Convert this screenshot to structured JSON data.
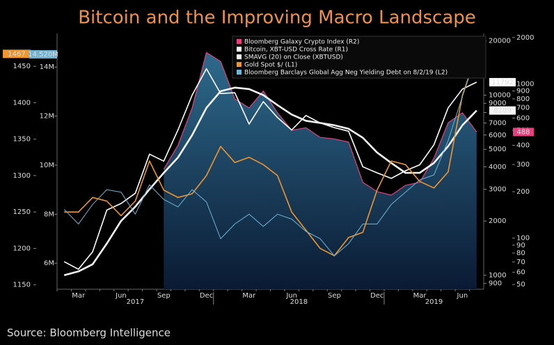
{
  "chart_data": {
    "type": "line",
    "title": "Bitcoin and the Improving Macro Landscape",
    "source": "Source: Bloomberg Intelligence",
    "categories": [
      null,
      "Mar",
      null,
      null,
      "Jun",
      null,
      null,
      "Sep",
      null,
      null,
      "Dec",
      null,
      null,
      "Mar",
      null,
      null,
      "Jun",
      null,
      null,
      "Sep",
      null,
      null,
      "Dec",
      null,
      null,
      "Mar",
      null,
      null,
      "Jun",
      null
    ],
    "x_groups": [
      "2017",
      "2018",
      "2019"
    ],
    "ylim": [
      1144,
      1495
    ],
    "yticks": [
      1150,
      1200,
      1250,
      1300,
      1350,
      1400,
      1450
    ],
    "y2lim": [
      4940000,
      15370000
    ],
    "y2ticks": [
      {
        "value": 6000000,
        "label": "6M"
      },
      {
        "value": 8000000,
        "label": "8M"
      },
      {
        "value": 10000000,
        "label": "10M"
      },
      {
        "value": 12000000,
        "label": "12M"
      },
      {
        "value": 14000000,
        "label": "14M"
      }
    ],
    "y3lim": [
      836,
      21980
    ],
    "y3log": true,
    "y3ticks": [
      900,
      1000,
      2000,
      3000,
      4000,
      5000,
      6000,
      7000,
      8000,
      9000,
      10000,
      20000
    ],
    "y4lim": [
      46.6,
      2125
    ],
    "y4log": true,
    "y4ticks": [
      50,
      60,
      70,
      80,
      90,
      100,
      200,
      300,
      400,
      500,
      600,
      700,
      800,
      900,
      1000,
      2000
    ],
    "series": [
      {
        "name": "Bloomberg Galaxy Crypto Index  (R2)",
        "color": "#e8407e",
        "style": "area",
        "axis": "y4",
        "values": [
          null,
          null,
          null,
          null,
          null,
          null,
          null,
          280,
          400,
          700,
          1600,
          1400,
          800,
          700,
          900,
          650,
          500,
          520,
          450,
          440,
          420,
          230,
          200,
          190,
          220,
          230,
          330,
          560,
          650,
          488
        ],
        "value_labels": [
          null,
          null,
          null,
          null,
          null,
          null,
          null,
          null,
          null,
          null,
          null,
          null,
          null,
          null,
          null,
          null,
          null,
          null,
          null,
          null,
          null,
          null,
          null,
          null,
          null,
          null,
          null,
          null,
          null,
          "488"
        ]
      },
      {
        "name": "Bitcoin, XBT-USD Cross Rate (R1)",
        "color": "#ffffff",
        "axis": "y3",
        "values": [
          1190,
          1080,
          1350,
          2300,
          2500,
          2850,
          4700,
          4300,
          6400,
          10000,
          14000,
          10200,
          10300,
          6900,
          9200,
          7500,
          6400,
          7700,
          7000,
          6600,
          6300,
          4000,
          3700,
          3450,
          3800,
          4100,
          5300,
          8500,
          10800,
          11792
        ],
        "value_labels": [
          null,
          null,
          null,
          null,
          null,
          null,
          null,
          null,
          null,
          null,
          null,
          null,
          null,
          null,
          null,
          null,
          null,
          null,
          null,
          null,
          null,
          null,
          null,
          null,
          null,
          null,
          null,
          null,
          null,
          "11792"
        ]
      },
      {
        "name": "SMAVG (20)  on Close (XBTUSD)",
        "color": "#f4f4f4",
        "axis": "y3",
        "values": [
          1000,
          1050,
          1150,
          1500,
          2000,
          2400,
          3000,
          3700,
          4500,
          6000,
          8500,
          10500,
          11000,
          10800,
          10000,
          8800,
          7800,
          7200,
          7000,
          6800,
          6500,
          5800,
          4800,
          4200,
          3700,
          3700,
          4200,
          5200,
          6800,
          8209
        ],
        "value_labels": [
          null,
          null,
          null,
          null,
          null,
          null,
          null,
          null,
          null,
          null,
          null,
          null,
          null,
          null,
          null,
          null,
          null,
          null,
          null,
          null,
          null,
          null,
          null,
          null,
          null,
          null,
          null,
          null,
          null,
          "8209"
        ]
      },
      {
        "name": "Gold Spot $/ (L1)",
        "color": "#f0962e",
        "axis": "y",
        "values": [
          1250,
          1250,
          1270,
          1265,
          1245,
          1265,
          1320,
          1280,
          1270,
          1275,
          1300,
          1340,
          1318,
          1325,
          1315,
          1300,
          1250,
          1225,
          1200,
          1190,
          1215,
          1222,
          1280,
          1320,
          1315,
          1292,
          1283,
          1305,
          1410,
          1467
        ],
        "value_labels": [
          null,
          null,
          null,
          null,
          null,
          null,
          null,
          null,
          null,
          null,
          null,
          null,
          null,
          null,
          null,
          null,
          null,
          null,
          null,
          null,
          null,
          null,
          null,
          null,
          null,
          null,
          null,
          null,
          null,
          "1467"
        ]
      },
      {
        "name": "Bloomberg Barclays Global Agg Neg Yielding Debt  on 8/2/19 (L2)",
        "color": "#6fb6d6",
        "axis": "y2",
        "values": [
          8200000,
          7600000,
          8400000,
          9000000,
          8900000,
          8000000,
          9200000,
          8600000,
          8300000,
          9000000,
          8500000,
          7000000,
          7600000,
          8000000,
          7500000,
          8000000,
          7800000,
          7300000,
          7000000,
          6300000,
          6800000,
          7600000,
          7600000,
          8400000,
          8900000,
          9400000,
          9600000,
          11000000,
          12800000,
          14520000
        ],
        "value_labels": [
          null,
          null,
          null,
          null,
          null,
          null,
          null,
          null,
          null,
          null,
          null,
          null,
          null,
          null,
          null,
          null,
          null,
          null,
          null,
          null,
          null,
          null,
          null,
          null,
          null,
          null,
          null,
          null,
          null,
          "14.520M"
        ]
      }
    ]
  }
}
